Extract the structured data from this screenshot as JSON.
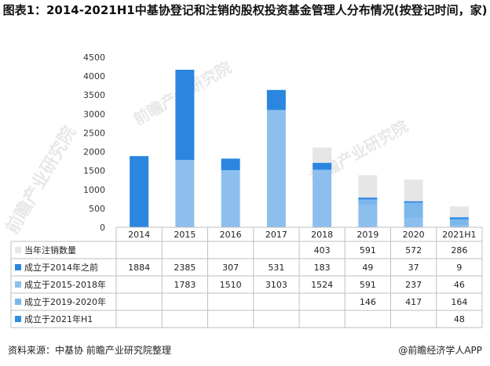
{
  "title": "图表1：2014-2021H1中基协登记和注销的股权投资基金管理人分布情况(按登记时间，家)",
  "source": "资料来源：中基协 前瞻产业研究院整理",
  "brand": "@前瞻经济学人APP",
  "watermark": "前瞻产业研究院",
  "colors": {
    "cancel": "#e6e6e6",
    "before2014": "#2a86df",
    "s2015_2018": "#8dbfee",
    "s2019_2020": "#7cb7ec",
    "s2021H1": "#2f8fe5",
    "grid": "#bfbfbf"
  },
  "chart_data": {
    "type": "bar",
    "stacked": true,
    "categories": [
      "2014",
      "2015",
      "2016",
      "2017",
      "2018",
      "2019",
      "2020",
      "2021H1"
    ],
    "series": [
      {
        "name": "当年注销数量",
        "values": [
          null,
          null,
          null,
          null,
          403,
          591,
          572,
          286
        ]
      },
      {
        "name": "成立于2014年之前",
        "values": [
          1884,
          2385,
          307,
          531,
          183,
          49,
          37,
          9
        ]
      },
      {
        "name": "成立于2015-2018年",
        "values": [
          null,
          1783,
          1510,
          3103,
          1524,
          591,
          237,
          46
        ]
      },
      {
        "name": "成立于2019-2020年",
        "values": [
          null,
          null,
          null,
          null,
          null,
          146,
          417,
          164
        ]
      },
      {
        "name": "成立于2021年H1",
        "values": [
          null,
          null,
          null,
          null,
          null,
          null,
          null,
          48
        ]
      }
    ],
    "yticks": [
      0,
      500,
      1000,
      1500,
      2000,
      2500,
      3000,
      3500,
      4000,
      4500
    ],
    "ylim": [
      0,
      4500
    ],
    "table_below": true
  }
}
